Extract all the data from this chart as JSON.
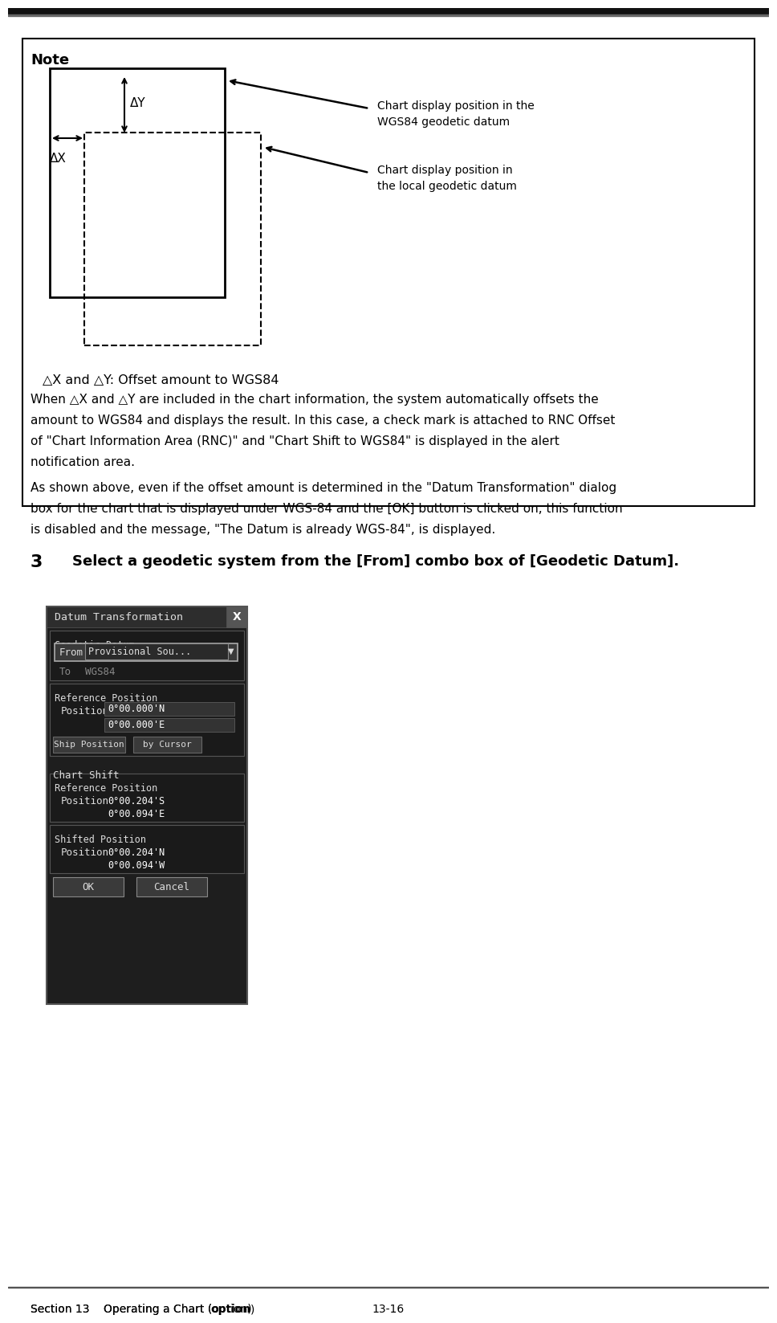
{
  "page_bg": "#ffffff",
  "top_bar_color": "#111111",
  "note_title": "Note",
  "diagram_label_wgs84": "Chart display position in the\nWGS84 geodetic datum",
  "diagram_label_local": "Chart display position in\nthe local geodetic datum",
  "diagram_caption": "△X and △Y: Offset amount to WGS84",
  "para1_lines": [
    "When △X and △Y are included in the chart information, the system automatically offsets the",
    "amount to WGS84 and displays the result. In this case, a check mark is attached to RNC Offset",
    "of \"Chart Information Area (RNC)\" and \"Chart Shift to WGS84\" is displayed in the alert",
    "notification area."
  ],
  "para2_lines": [
    "As shown above, even if the offset amount is determined in the \"Datum Transformation\" dialog",
    "box for the chart that is displayed under WGS-84 and the [OK] button is clicked on, this function",
    "is disabled and the message, \"The Datum is already WGS-84\", is displayed."
  ],
  "step_number": "3",
  "step_text": "Select a geodetic system from the [From] combo box of [Geodetic Datum].",
  "footer_left": "Section 13    Operating a Chart (option)",
  "footer_right": "13-16",
  "dialog_title": "Datum Transformation",
  "dialog_close": "X",
  "dialog_geodetic_label": "Geodetic Datum",
  "dialog_from_label": "From",
  "dialog_from_value": "Provisional Sou...",
  "dialog_to_label": "To",
  "dialog_to_value": "WGS84",
  "dialog_refpos_label": "Reference Position",
  "dialog_position_label": "Position",
  "dialog_pos1": "0°00.000'N",
  "dialog_pos2": "0°00.000'E",
  "dialog_btn1": "Ship Position",
  "dialog_btn2": "by Cursor",
  "dialog_chartshift_label": "Chart Shift",
  "dialog_refpos2_label": "Reference Position",
  "dialog_position2_label": "Position",
  "dialog_pos3": "0°00.204'S",
  "dialog_pos4": "0°00.094'E",
  "dialog_shiftedpos_label": "Shifted Position",
  "dialog_position3_label": "Position",
  "dialog_pos5": "0°00.204'N",
  "dialog_pos6": "0°00.094'W",
  "dialog_ok": "OK",
  "dialog_cancel": "Cancel",
  "dialog_bg": "#1e1e1e",
  "dialog_titlebar_bg": "#2d2d2d",
  "dialog_section_bg": "#2a2a2a",
  "dialog_inner_bg": "#1a1a1a",
  "dialog_text_color": "#dddddd",
  "dialog_input_bg": "#333333",
  "dialog_input_text": "#ffffff",
  "dialog_border_color": "#555555",
  "dialog_btn_bg": "#3a3a3a",
  "dialog_btn_text": "#dddddd"
}
